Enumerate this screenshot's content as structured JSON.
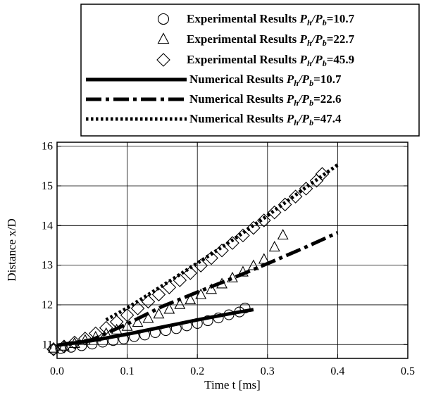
{
  "chart_data": {
    "type": "scatter",
    "xlabel": "Time t [ms]",
    "ylabel": "Distance x/D",
    "xlim": [
      0.0,
      0.5
    ],
    "ylim": [
      10.65,
      16.1
    ],
    "xticks": [
      "0.0",
      "0.1",
      "0.2",
      "0.3",
      "0.4",
      "0.5"
    ],
    "yticks": [
      "11",
      "12",
      "13",
      "14",
      "15",
      "16"
    ],
    "grid": true,
    "legend_placement": "top-center",
    "legend": [
      {
        "label": "Experimental Results ",
        "ratio": "10.7",
        "marker": "circle"
      },
      {
        "label": "Experimental Results ",
        "ratio": "22.7",
        "marker": "triangle"
      },
      {
        "label": "Experimental Results ",
        "ratio": "45.9",
        "marker": "diamond"
      },
      {
        "label": "Numerical Results ",
        "ratio": "10.7",
        "line": "solid"
      },
      {
        "label": "Numerical Results ",
        "ratio": "22.6",
        "line": "dashdot"
      },
      {
        "label": "Numerical Results ",
        "ratio": "47.4",
        "line": "dotted"
      }
    ],
    "experimental": [
      {
        "name": "Experimental Results Ph/Pb=10.7",
        "marker": "circle",
        "x": [
          -0.005,
          0.005,
          0.02,
          0.035,
          0.05,
          0.065,
          0.08,
          0.095,
          0.11,
          0.125,
          0.14,
          0.155,
          0.17,
          0.185,
          0.2,
          0.215,
          0.23,
          0.245,
          0.26,
          0.268
        ],
        "y": [
          10.88,
          10.9,
          10.93,
          10.97,
          11.01,
          11.06,
          11.1,
          11.14,
          11.2,
          11.24,
          11.3,
          11.35,
          11.4,
          11.47,
          11.53,
          11.6,
          11.67,
          11.75,
          11.82,
          11.92
        ]
      },
      {
        "name": "Experimental Results Ph/Pb=22.7",
        "marker": "triangle",
        "x": [
          -0.005,
          0.01,
          0.025,
          0.04,
          0.055,
          0.07,
          0.085,
          0.1,
          0.115,
          0.13,
          0.145,
          0.16,
          0.175,
          0.19,
          0.205,
          0.22,
          0.235,
          0.25,
          0.265,
          0.28,
          0.295,
          0.31,
          0.322
        ],
        "y": [
          10.9,
          10.95,
          11.02,
          11.1,
          11.18,
          11.27,
          11.36,
          11.45,
          11.55,
          11.65,
          11.76,
          11.88,
          12.0,
          12.12,
          12.25,
          12.38,
          12.52,
          12.67,
          12.82,
          12.98,
          13.14,
          13.45,
          13.75
        ]
      },
      {
        "name": "Experimental Results Ph/Pb=45.9",
        "marker": "diamond",
        "x": [
          -0.005,
          0.01,
          0.025,
          0.04,
          0.055,
          0.07,
          0.085,
          0.1,
          0.115,
          0.13,
          0.145,
          0.16,
          0.175,
          0.19,
          0.205,
          0.22,
          0.235,
          0.25,
          0.265,
          0.28,
          0.295,
          0.31,
          0.325,
          0.34,
          0.355,
          0.37,
          0.378
        ],
        "y": [
          10.88,
          10.95,
          11.05,
          11.15,
          11.28,
          11.42,
          11.57,
          11.74,
          11.91,
          12.08,
          12.26,
          12.44,
          12.62,
          12.8,
          12.99,
          13.18,
          13.37,
          13.56,
          13.75,
          13.94,
          14.13,
          14.33,
          14.53,
          14.73,
          14.93,
          15.13,
          15.3
        ]
      }
    ],
    "numerical": [
      {
        "name": "Numerical Results Ph/Pb=10.7",
        "style": "solid",
        "x": [
          0.0,
          0.05,
          0.1,
          0.15,
          0.2,
          0.25,
          0.28
        ],
        "y": [
          10.98,
          11.1,
          11.26,
          11.44,
          11.62,
          11.79,
          11.88
        ]
      },
      {
        "name": "Numerical Results Ph/Pb=22.6",
        "style": "dashdot",
        "x": [
          0.0,
          0.05,
          0.1,
          0.15,
          0.2,
          0.25,
          0.3,
          0.35,
          0.4
        ],
        "y": [
          10.98,
          11.12,
          11.52,
          11.96,
          12.32,
          12.67,
          13.04,
          13.42,
          13.82
        ]
      },
      {
        "name": "Numerical Results Ph/Pb=47.4",
        "style": "dotted",
        "x": [
          0.07,
          0.1,
          0.15,
          0.2,
          0.25,
          0.3,
          0.35,
          0.4
        ],
        "y": [
          11.62,
          11.92,
          12.48,
          13.05,
          13.63,
          14.25,
          14.9,
          15.53
        ]
      }
    ]
  }
}
